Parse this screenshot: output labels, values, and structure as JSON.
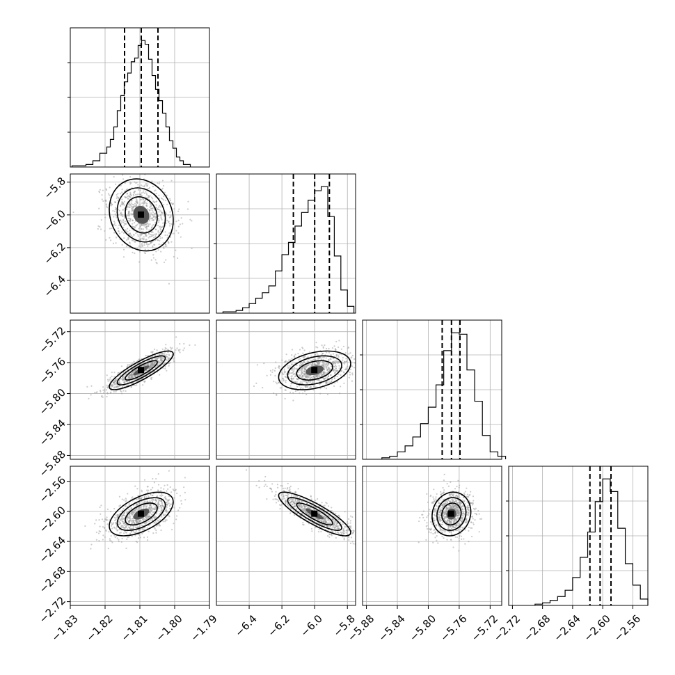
{
  "chart_data": {
    "type": "corner",
    "grid": true,
    "parameters": [
      {
        "range": [
          -1.83,
          -1.79
        ],
        "ticks": [
          -1.83,
          -1.82,
          -1.81,
          -1.8,
          -1.79
        ],
        "tick_labels": [
          "−1.83",
          "−1.82",
          "−1.81",
          "−1.80",
          "−1.79"
        ],
        "median": -1.8096,
        "q16": -1.8144,
        "q84": -1.8048,
        "sigma": 0.0046
      },
      {
        "range": [
          -6.6,
          -5.75
        ],
        "ticks": [
          -6.4,
          -6.2,
          -6.0,
          -5.8
        ],
        "tick_labels": [
          "−6.4",
          "−6.2",
          "−6.0",
          "−5.8"
        ],
        "median": -6.0,
        "q16": -6.13,
        "q84": -5.91,
        "sigma": 0.11
      },
      {
        "range": [
          -5.885,
          -5.705
        ],
        "ticks": [
          -5.88,
          -5.84,
          -5.8,
          -5.76,
          -5.72
        ],
        "tick_labels": [
          "−5.88",
          "−5.84",
          "−5.80",
          "−5.76",
          "−5.72"
        ],
        "median": -5.77,
        "q16": -5.782,
        "q84": -5.759,
        "sigma": 0.0125
      },
      {
        "range": [
          -2.725,
          -2.54
        ],
        "ticks": [
          -2.72,
          -2.68,
          -2.64,
          -2.6,
          -2.56
        ],
        "tick_labels": [
          "−2.72",
          "−2.68",
          "−2.64",
          "−2.60",
          "−2.56"
        ],
        "median": -2.6035,
        "q16": -2.617,
        "q84": -2.589,
        "sigma": 0.0145
      }
    ],
    "histograms": [
      {
        "param": 0,
        "bins": [
          [
            -1.8295,
            -1.8255
          ],
          [
            -1.8255,
            -1.8235
          ],
          [
            -1.8235,
            -1.8215
          ],
          [
            -1.8215,
            -1.8195
          ],
          [
            -1.8195,
            -1.8185
          ],
          [
            -1.8185,
            -1.8175
          ],
          [
            -1.8175,
            -1.8165
          ],
          [
            -1.8165,
            -1.8155
          ],
          [
            -1.8155,
            -1.8145
          ],
          [
            -1.8145,
            -1.8135
          ],
          [
            -1.8135,
            -1.8125
          ],
          [
            -1.8125,
            -1.8115
          ],
          [
            -1.8115,
            -1.8105
          ],
          [
            -1.8105,
            -1.8095
          ],
          [
            -1.8095,
            -1.8085
          ],
          [
            -1.8085,
            -1.8075
          ],
          [
            -1.8075,
            -1.8065
          ],
          [
            -1.8065,
            -1.8055
          ],
          [
            -1.8055,
            -1.8045
          ],
          [
            -1.8045,
            -1.8035
          ],
          [
            -1.8035,
            -1.8025
          ],
          [
            -1.8025,
            -1.8015
          ],
          [
            -1.8015,
            -1.8005
          ],
          [
            -1.8005,
            -1.7995
          ],
          [
            -1.7995,
            -1.7985
          ],
          [
            -1.7985,
            -1.7975
          ],
          [
            -1.7975,
            -1.7955
          ]
        ],
        "counts": [
          1,
          2,
          5,
          11,
          16,
          22,
          32,
          45,
          57,
          68,
          75,
          84,
          87,
          97,
          101,
          98,
          86,
          73,
          62,
          53,
          43,
          32,
          21,
          15,
          8,
          5,
          2
        ]
      },
      {
        "param": 1,
        "bins": [
          [
            -6.56,
            -6.48
          ],
          [
            -6.48,
            -6.44
          ],
          [
            -6.44,
            -6.4
          ],
          [
            -6.4,
            -6.36
          ],
          [
            -6.36,
            -6.32
          ],
          [
            -6.32,
            -6.28
          ],
          [
            -6.28,
            -6.24
          ],
          [
            -6.24,
            -6.2
          ],
          [
            -6.2,
            -6.16
          ],
          [
            -6.16,
            -6.12
          ],
          [
            -6.12,
            -6.08
          ],
          [
            -6.08,
            -6.04
          ],
          [
            -6.04,
            -6.0
          ],
          [
            -6.0,
            -5.96
          ],
          [
            -5.96,
            -5.92
          ],
          [
            -5.92,
            -5.88
          ],
          [
            -5.88,
            -5.84
          ],
          [
            -5.84,
            -5.8
          ],
          [
            -5.8,
            -5.76
          ]
        ],
        "counts": [
          1,
          2,
          4,
          7,
          11,
          15,
          20,
          31,
          43,
          52,
          64,
          74,
          83,
          90,
          93,
          71,
          42,
          17,
          5
        ]
      },
      {
        "param": 2,
        "bins": [
          [
            -5.86,
            -5.85
          ],
          [
            -5.85,
            -5.84
          ],
          [
            -5.84,
            -5.83
          ],
          [
            -5.83,
            -5.82
          ],
          [
            -5.82,
            -5.81
          ],
          [
            -5.81,
            -5.8
          ],
          [
            -5.8,
            -5.79
          ],
          [
            -5.79,
            -5.78
          ],
          [
            -5.78,
            -5.77
          ],
          [
            -5.77,
            -5.76
          ],
          [
            -5.76,
            -5.75
          ],
          [
            -5.75,
            -5.74
          ],
          [
            -5.74,
            -5.73
          ],
          [
            -5.73,
            -5.72
          ],
          [
            -5.72,
            -5.71
          ],
          [
            -5.71,
            -5.7
          ]
        ],
        "counts": [
          1,
          2,
          5,
          9,
          15,
          24,
          35,
          50,
          73,
          85,
          84,
          60,
          39,
          16,
          5,
          2
        ]
      },
      {
        "param": 3,
        "bins": [
          [
            -2.69,
            -2.68
          ],
          [
            -2.68,
            -2.67
          ],
          [
            -2.67,
            -2.66
          ],
          [
            -2.66,
            -2.65
          ],
          [
            -2.65,
            -2.64
          ],
          [
            -2.64,
            -2.63
          ],
          [
            -2.63,
            -2.62
          ],
          [
            -2.62,
            -2.61
          ],
          [
            -2.61,
            -2.6
          ],
          [
            -2.6,
            -2.59
          ],
          [
            -2.59,
            -2.58
          ],
          [
            -2.58,
            -2.57
          ],
          [
            -2.57,
            -2.56
          ],
          [
            -2.56,
            -2.55
          ],
          [
            -2.55,
            -2.54
          ]
        ],
        "counts": [
          1,
          2,
          4,
          7,
          12,
          22,
          38,
          58,
          82,
          100,
          90,
          61,
          33,
          16,
          5
        ]
      }
    ],
    "pairs": [
      {
        "x": 0,
        "y": 1,
        "rho": -0.15
      },
      {
        "x": 0,
        "y": 2,
        "rho": 0.85
      },
      {
        "x": 1,
        "y": 2,
        "rho": 0.35
      },
      {
        "x": 0,
        "y": 3,
        "rho": 0.55
      },
      {
        "x": 1,
        "y": 3,
        "rho": -0.85
      },
      {
        "x": 2,
        "y": 3,
        "rho": 0.1
      }
    ]
  }
}
